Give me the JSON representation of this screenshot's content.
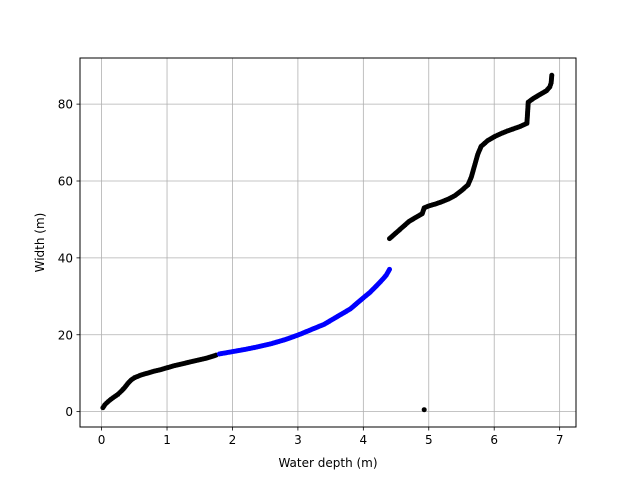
{
  "chart_data": {
    "type": "scatter",
    "xlabel": "Water depth (m)",
    "ylabel": "Width (m)",
    "xlim": [
      -0.33,
      7.25
    ],
    "ylim": [
      -4,
      92
    ],
    "xticks": [
      0,
      1,
      2,
      3,
      4,
      5,
      6,
      7
    ],
    "yticks": [
      0,
      20,
      40,
      60,
      80
    ],
    "grid": true,
    "series": [
      {
        "color": "#000000",
        "points": [
          [
            0.02,
            1.0
          ],
          [
            0.05,
            1.8
          ],
          [
            0.1,
            2.6
          ],
          [
            0.15,
            3.3
          ],
          [
            0.2,
            3.9
          ],
          [
            0.25,
            4.5
          ],
          [
            0.3,
            5.3
          ],
          [
            0.35,
            6.2
          ],
          [
            0.4,
            7.3
          ],
          [
            0.45,
            8.2
          ],
          [
            0.5,
            8.8
          ],
          [
            0.6,
            9.5
          ],
          [
            0.7,
            10.0
          ],
          [
            0.8,
            10.5
          ],
          [
            0.9,
            10.9
          ],
          [
            1.0,
            11.4
          ],
          [
            1.1,
            11.9
          ],
          [
            1.2,
            12.3
          ],
          [
            1.3,
            12.7
          ],
          [
            1.4,
            13.1
          ],
          [
            1.5,
            13.5
          ],
          [
            1.6,
            13.9
          ],
          [
            1.7,
            14.4
          ],
          [
            1.75,
            14.7
          ],
          [
            4.4,
            45.0
          ],
          [
            4.5,
            46.5
          ],
          [
            4.6,
            48.0
          ],
          [
            4.7,
            49.5
          ],
          [
            4.8,
            50.5
          ],
          [
            4.9,
            51.5
          ],
          [
            4.93,
            53.0
          ],
          [
            5.0,
            53.5
          ],
          [
            5.1,
            54.0
          ],
          [
            5.2,
            54.6
          ],
          [
            5.3,
            55.3
          ],
          [
            5.4,
            56.2
          ],
          [
            5.5,
            57.5
          ],
          [
            5.6,
            59.0
          ],
          [
            5.65,
            61.0
          ],
          [
            5.7,
            64.0
          ],
          [
            5.75,
            67.0
          ],
          [
            5.8,
            69.0
          ],
          [
            5.9,
            70.5
          ],
          [
            6.0,
            71.5
          ],
          [
            6.1,
            72.3
          ],
          [
            6.2,
            73.0
          ],
          [
            6.3,
            73.6
          ],
          [
            6.4,
            74.2
          ],
          [
            6.5,
            75.0
          ],
          [
            6.52,
            80.5
          ],
          [
            6.6,
            81.5
          ],
          [
            6.7,
            82.5
          ],
          [
            6.8,
            83.5
          ],
          [
            6.85,
            84.5
          ],
          [
            6.87,
            85.5
          ],
          [
            6.88,
            87.5
          ],
          [
            4.93,
            0.5
          ]
        ]
      },
      {
        "color": "#0000ff",
        "points": [
          [
            1.8,
            15.0
          ],
          [
            1.9,
            15.3
          ],
          [
            2.0,
            15.6
          ],
          [
            2.2,
            16.2
          ],
          [
            2.4,
            16.9
          ],
          [
            2.6,
            17.7
          ],
          [
            2.8,
            18.7
          ],
          [
            3.0,
            19.9
          ],
          [
            3.2,
            21.3
          ],
          [
            3.4,
            22.7
          ],
          [
            3.6,
            24.7
          ],
          [
            3.8,
            26.7
          ],
          [
            4.0,
            29.6
          ],
          [
            4.1,
            31.0
          ],
          [
            4.2,
            32.7
          ],
          [
            4.3,
            34.5
          ],
          [
            4.35,
            35.5
          ],
          [
            4.4,
            37.0
          ]
        ]
      }
    ]
  }
}
